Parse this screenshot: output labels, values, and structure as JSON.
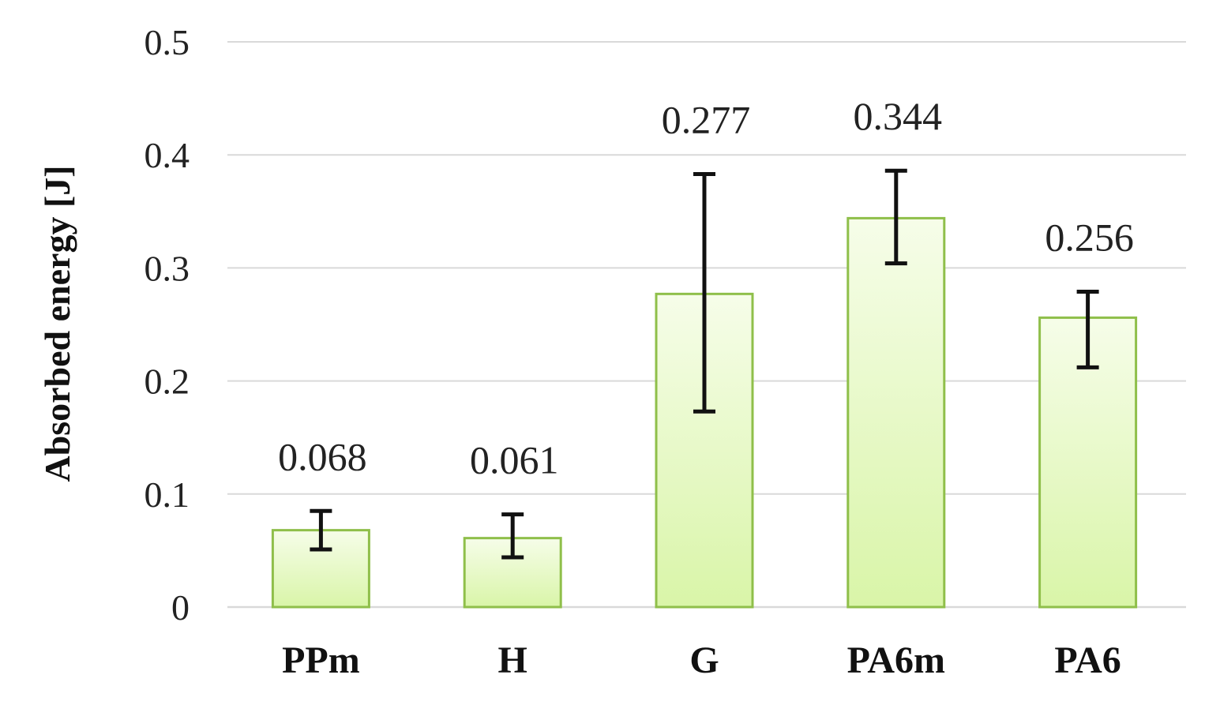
{
  "chart_data": {
    "type": "bar",
    "title": "",
    "xlabel": "",
    "ylabel": "Absorbed energy  [J]",
    "categories": [
      "PPm",
      "H",
      "G",
      "PA6m",
      "PA6"
    ],
    "values": [
      0.068,
      0.061,
      0.277,
      0.344,
      0.256
    ],
    "value_labels": [
      "0.068",
      "0.061",
      "0.277",
      "0.344",
      "0.256"
    ],
    "error_bars": [
      {
        "low": 0.051,
        "high": 0.085
      },
      {
        "low": 0.044,
        "high": 0.082
      },
      {
        "low": 0.173,
        "high": 0.383
      },
      {
        "low": 0.304,
        "high": 0.386
      },
      {
        "low": 0.212,
        "high": 0.279
      }
    ],
    "ylim": [
      0,
      0.5
    ],
    "yticks": [
      0,
      0.1,
      0.2,
      0.3,
      0.4,
      0.5
    ],
    "ytick_labels": [
      "0",
      "0.1",
      "0.2",
      "0.3",
      "0.4",
      "0.5"
    ],
    "grid": true,
    "legend": "none",
    "colors": {
      "bar_fill_top": "#f6fde9",
      "bar_fill_bottom": "#d9f5a8",
      "bar_stroke": "#8fbf4a",
      "error_bar": "#111111",
      "grid": "#d9d9d9"
    }
  }
}
